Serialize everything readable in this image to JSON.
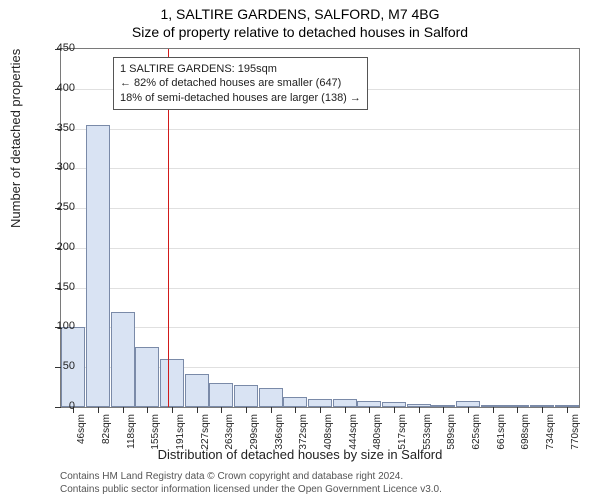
{
  "title_line1": "1, SALTIRE GARDENS, SALFORD, M7 4BG",
  "title_line2": "Size of property relative to detached houses in Salford",
  "y_axis": {
    "label": "Number of detached properties",
    "min": 0,
    "max": 450,
    "ticks": [
      0,
      50,
      100,
      150,
      200,
      250,
      300,
      350,
      400,
      450
    ]
  },
  "x_axis": {
    "label": "Distribution of detached houses by size in Salford",
    "tick_labels": [
      "46sqm",
      "82sqm",
      "118sqm",
      "155sqm",
      "191sqm",
      "227sqm",
      "263sqm",
      "299sqm",
      "336sqm",
      "372sqm",
      "408sqm",
      "444sqm",
      "480sqm",
      "517sqm",
      "553sqm",
      "589sqm",
      "625sqm",
      "661sqm",
      "698sqm",
      "734sqm",
      "770sqm"
    ],
    "min": 46,
    "max": 770
  },
  "bars": {
    "values": [
      100,
      355,
      120,
      75,
      60,
      42,
      30,
      28,
      24,
      12,
      10,
      10,
      8,
      6,
      4,
      3,
      8,
      3,
      3,
      3,
      3
    ],
    "fill_color": "#d9e3f3",
    "border_color": "#7a8aa8"
  },
  "marker": {
    "x_value": 195,
    "color": "#d11a1a"
  },
  "annotation": {
    "line1": "1 SALTIRE GARDENS: 195sqm",
    "line2": "← 82% of detached houses are smaller (647)",
    "line3": "18% of semi-detached houses are larger (138) →"
  },
  "credits": {
    "line1": "Contains HM Land Registry data © Crown copyright and database right 2024.",
    "line2": "Contains public sector information licensed under the Open Government Licence v3.0."
  },
  "style": {
    "background_color": "#ffffff",
    "grid_color": "rgba(0,0,0,0.12)",
    "axis_color": "#7a7a7a",
    "tick_fontsize": 11,
    "label_fontsize": 13,
    "title_fontsize": 14
  }
}
